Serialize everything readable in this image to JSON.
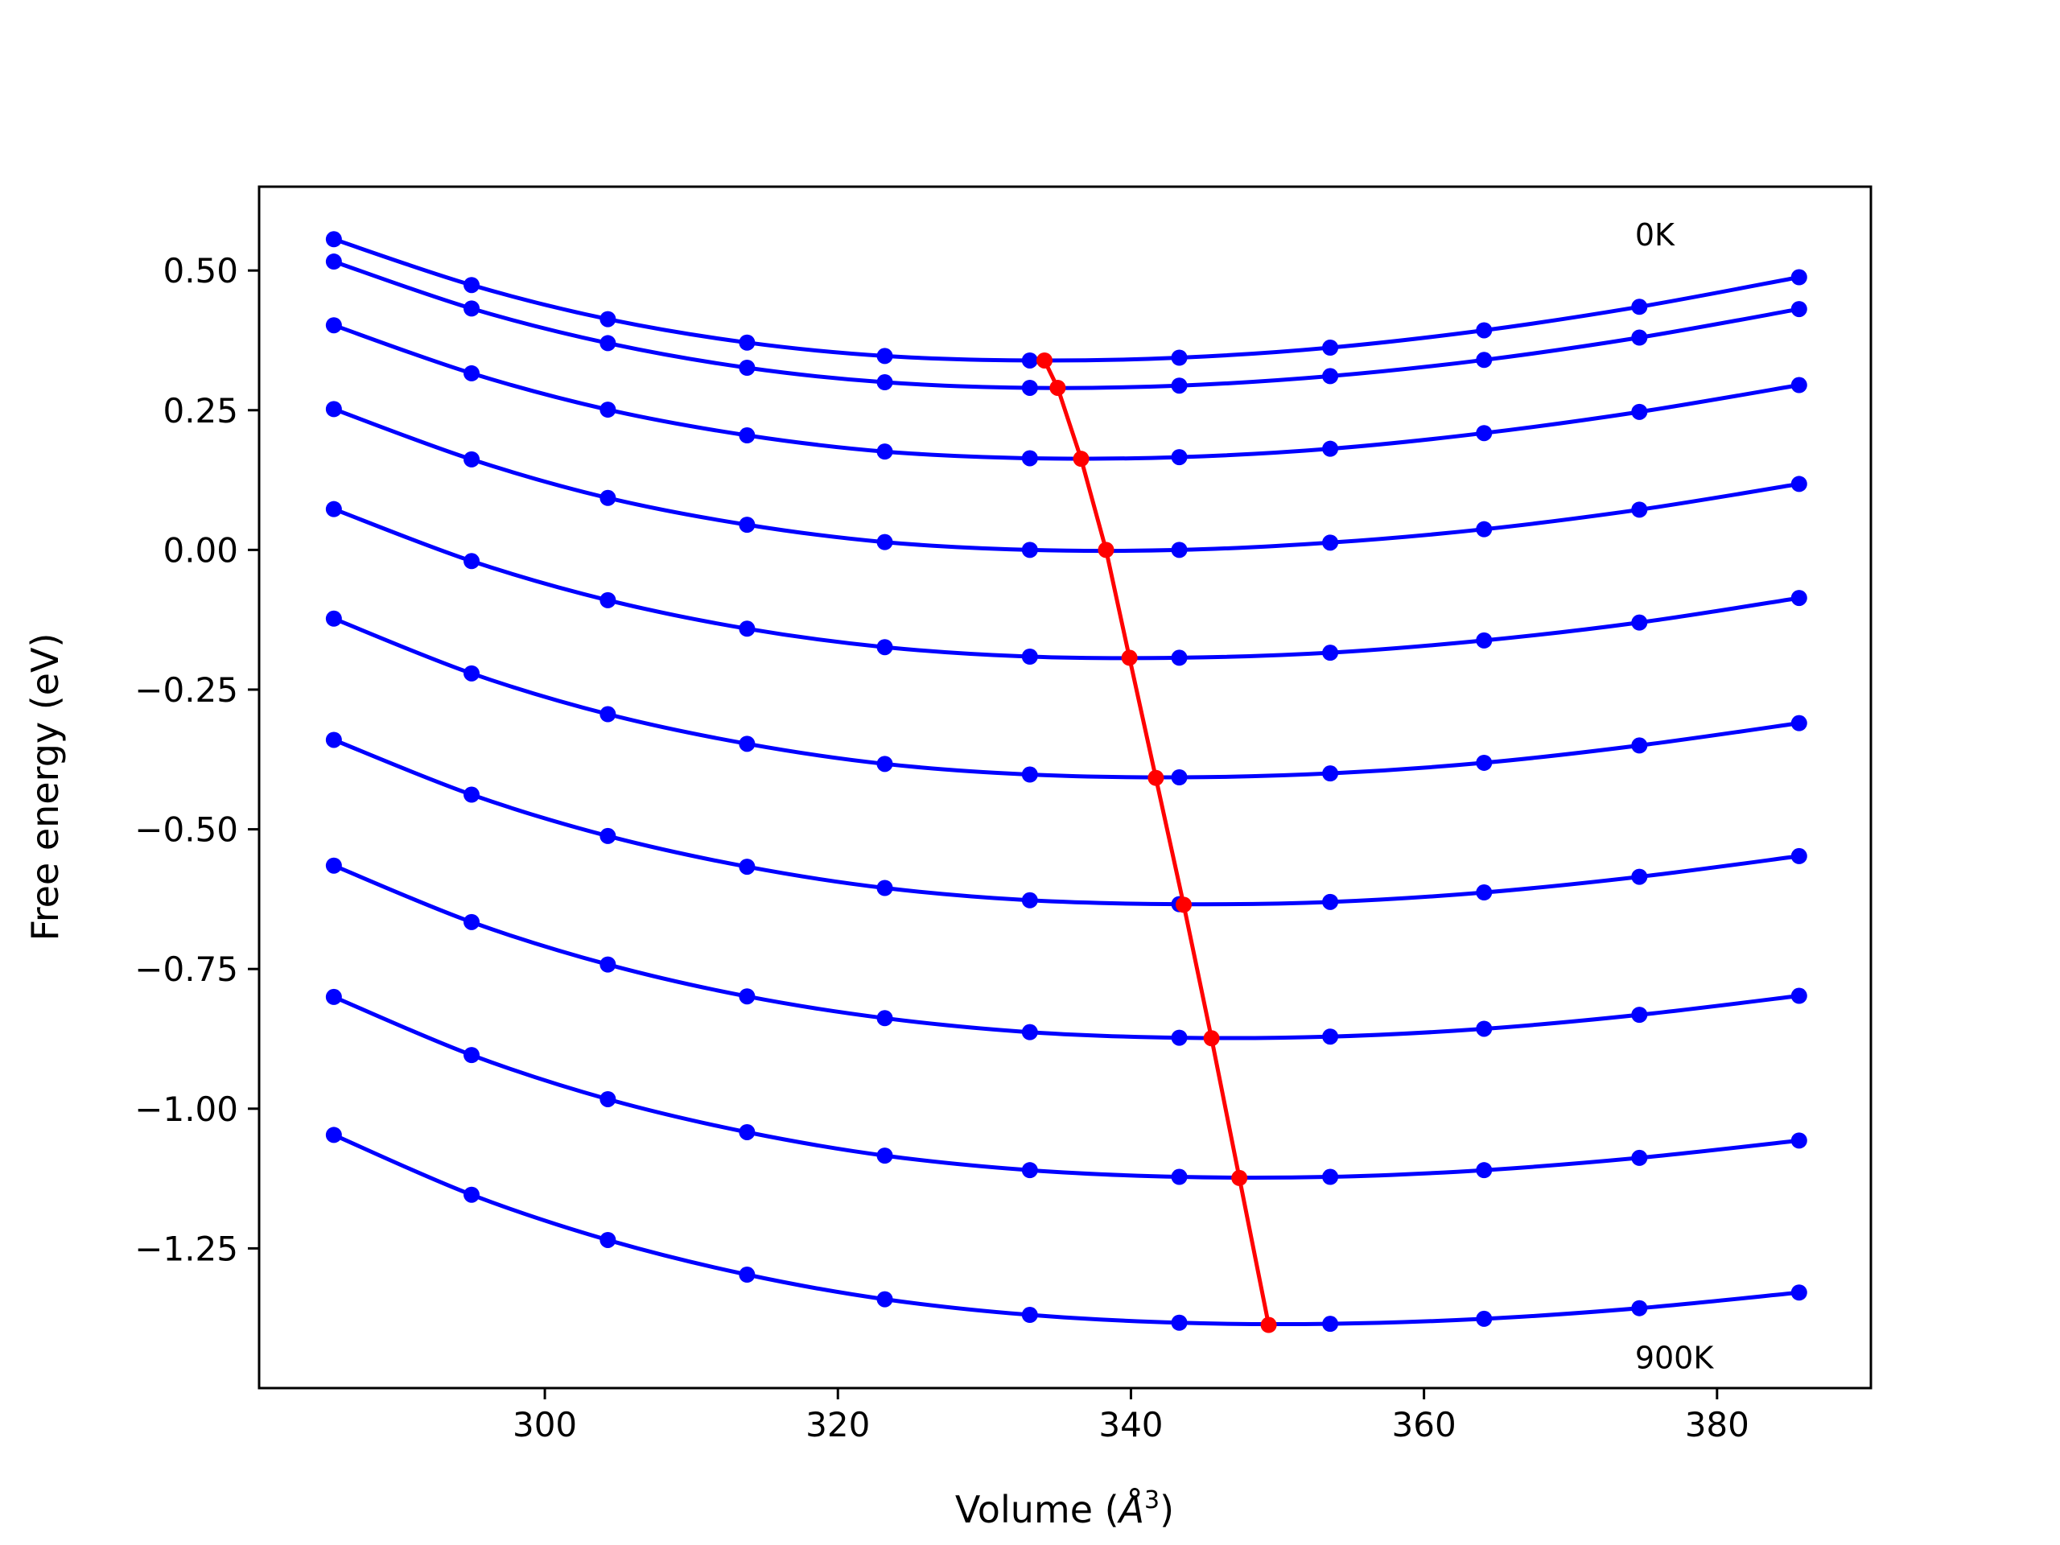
{
  "chart_data": {
    "type": "line",
    "title": "",
    "xlabel": "Volume (",
    "xlabel_symbol": "Å",
    "xlabel_exp": "3",
    "xlabel_close": ")",
    "ylabel": "Free energy (eV)",
    "xlim": [
      280.5,
      390.5
    ],
    "ylim": [
      -1.5,
      0.65
    ],
    "xticks": [
      300,
      320,
      340,
      360,
      380
    ],
    "xtick_labels": [
      "300",
      "320",
      "340",
      "360",
      "380"
    ],
    "yticks": [
      0.5,
      0.25,
      0.0,
      -0.25,
      -0.5,
      -0.75,
      -1.0,
      -1.25
    ],
    "ytick_labels": [
      "0.50",
      "0.25",
      "0.00",
      "−0.25",
      "−0.50",
      "−0.75",
      "−1.00",
      "−1.25"
    ],
    "grid": false,
    "annotations": [
      {
        "text": "0K",
        "x": 374.4,
        "y": 0.545
      },
      {
        "text": "900K",
        "x": 374.4,
        "y": -1.465
      }
    ],
    "colors": {
      "curves": "#0000ff",
      "minimum_path": "#ff0000",
      "axes": "#000000"
    },
    "x": [
      285.6,
      295.0,
      304.3,
      313.8,
      323.2,
      333.1,
      343.3,
      353.6,
      364.1,
      374.7,
      385.6
    ],
    "series": [
      {
        "values": [
          0.556,
          0.474,
          0.413,
          0.371,
          0.347,
          0.339,
          0.344,
          0.362,
          0.393,
          0.435,
          0.488
        ]
      },
      {
        "values": [
          0.516,
          0.432,
          0.37,
          0.326,
          0.3,
          0.29,
          0.294,
          0.311,
          0.34,
          0.38,
          0.431
        ]
      },
      {
        "values": [
          0.402,
          0.316,
          0.251,
          0.205,
          0.176,
          0.164,
          0.166,
          0.181,
          0.209,
          0.247,
          0.295
        ]
      },
      {
        "values": [
          0.252,
          0.162,
          0.093,
          0.045,
          0.014,
          0.0,
          0.0,
          0.013,
          0.037,
          0.072,
          0.118
        ]
      },
      {
        "values": [
          0.073,
          -0.02,
          -0.09,
          -0.141,
          -0.174,
          -0.191,
          -0.193,
          -0.184,
          -0.162,
          -0.13,
          -0.086
        ]
      },
      {
        "values": [
          -0.123,
          -0.221,
          -0.294,
          -0.347,
          -0.383,
          -0.402,
          -0.407,
          -0.4,
          -0.381,
          -0.35,
          -0.31
        ]
      },
      {
        "values": [
          -0.34,
          -0.438,
          -0.512,
          -0.567,
          -0.605,
          -0.627,
          -0.634,
          -0.63,
          -0.613,
          -0.585,
          -0.548
        ]
      },
      {
        "values": [
          -0.565,
          -0.666,
          -0.742,
          -0.799,
          -0.838,
          -0.863,
          -0.873,
          -0.871,
          -0.857,
          -0.832,
          -0.798
        ]
      },
      {
        "values": [
          -0.8,
          -0.904,
          -0.983,
          -1.042,
          -1.084,
          -1.11,
          -1.122,
          -1.122,
          -1.11,
          -1.088,
          -1.057
        ]
      },
      {
        "values": [
          -1.047,
          -1.154,
          -1.235,
          -1.297,
          -1.341,
          -1.369,
          -1.383,
          -1.385,
          -1.376,
          -1.357,
          -1.329
        ]
      }
    ],
    "minimum_path": {
      "x": [
        334.1,
        335.0,
        336.6,
        338.3,
        339.9,
        341.7,
        343.6,
        345.5,
        347.4,
        349.4
      ],
      "y": [
        0.339,
        0.29,
        0.163,
        0.0,
        -0.193,
        -0.408,
        -0.635,
        -0.874,
        -1.124,
        -1.387
      ]
    }
  }
}
